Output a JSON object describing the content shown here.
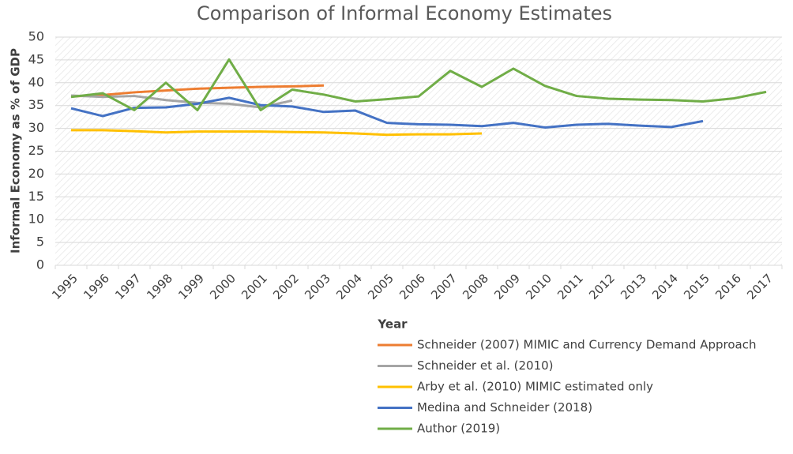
{
  "chart_data": {
    "type": "line",
    "title": "Comparison of Informal Economy Estimates",
    "x_label": "Year",
    "y_label": "Informal Economy as % of GDP",
    "categories": [
      "1995",
      "1996",
      "1997",
      "1998",
      "1999",
      "2000",
      "2001",
      "2002",
      "2003",
      "2004",
      "2005",
      "2006",
      "2007",
      "2008",
      "2009",
      "2010",
      "2011",
      "2012",
      "2013",
      "2014",
      "2015",
      "2016",
      "2017"
    ],
    "ylim": [
      0,
      50
    ],
    "yticks": [
      0,
      5,
      10,
      15,
      20,
      25,
      30,
      35,
      40,
      45,
      50
    ],
    "grid": true,
    "series": [
      {
        "name": "Schneider (2007) MIMIC and Currency Demand Approach",
        "color": "#ed7d31",
        "values": [
          37.0,
          37.3,
          37.9,
          38.3,
          38.7,
          38.9,
          39.1,
          39.2,
          39.4,
          null,
          null,
          null,
          null,
          null,
          null,
          null,
          null,
          null,
          null,
          null,
          null,
          null,
          null
        ]
      },
      {
        "name": "Schneider et al. (2010)",
        "color": "#a5a5a5",
        "values": [
          37.2,
          36.9,
          37.1,
          36.2,
          35.6,
          35.4,
          34.6,
          36.1,
          null,
          null,
          null,
          null,
          null,
          null,
          null,
          null,
          null,
          null,
          null,
          null,
          null,
          null,
          null
        ]
      },
      {
        "name": "Arby et al. (2010) MIMIC estimated only",
        "color": "#ffc000",
        "values": [
          29.6,
          29.6,
          29.4,
          29.1,
          29.3,
          29.3,
          29.3,
          29.2,
          29.1,
          28.9,
          28.6,
          28.7,
          28.7,
          28.9,
          null,
          null,
          null,
          null,
          null,
          null,
          null,
          null,
          null
        ]
      },
      {
        "name": "Medina and Schneider (2018)",
        "color": "#4472c4",
        "values": [
          34.4,
          32.7,
          34.5,
          34.6,
          35.4,
          36.7,
          35.1,
          34.8,
          33.6,
          33.9,
          31.2,
          30.9,
          30.8,
          30.5,
          31.2,
          30.2,
          30.8,
          31.0,
          30.6,
          30.3,
          31.6,
          null,
          null
        ]
      },
      {
        "name": "Author (2019)",
        "color": "#70ad47",
        "values": [
          36.9,
          37.7,
          34.0,
          40.0,
          34.0,
          45.1,
          34.0,
          38.5,
          37.4,
          35.9,
          36.4,
          37.0,
          42.6,
          39.1,
          43.1,
          39.3,
          37.1,
          36.5,
          36.3,
          36.2,
          35.9,
          36.6,
          38.0
        ]
      }
    ]
  }
}
